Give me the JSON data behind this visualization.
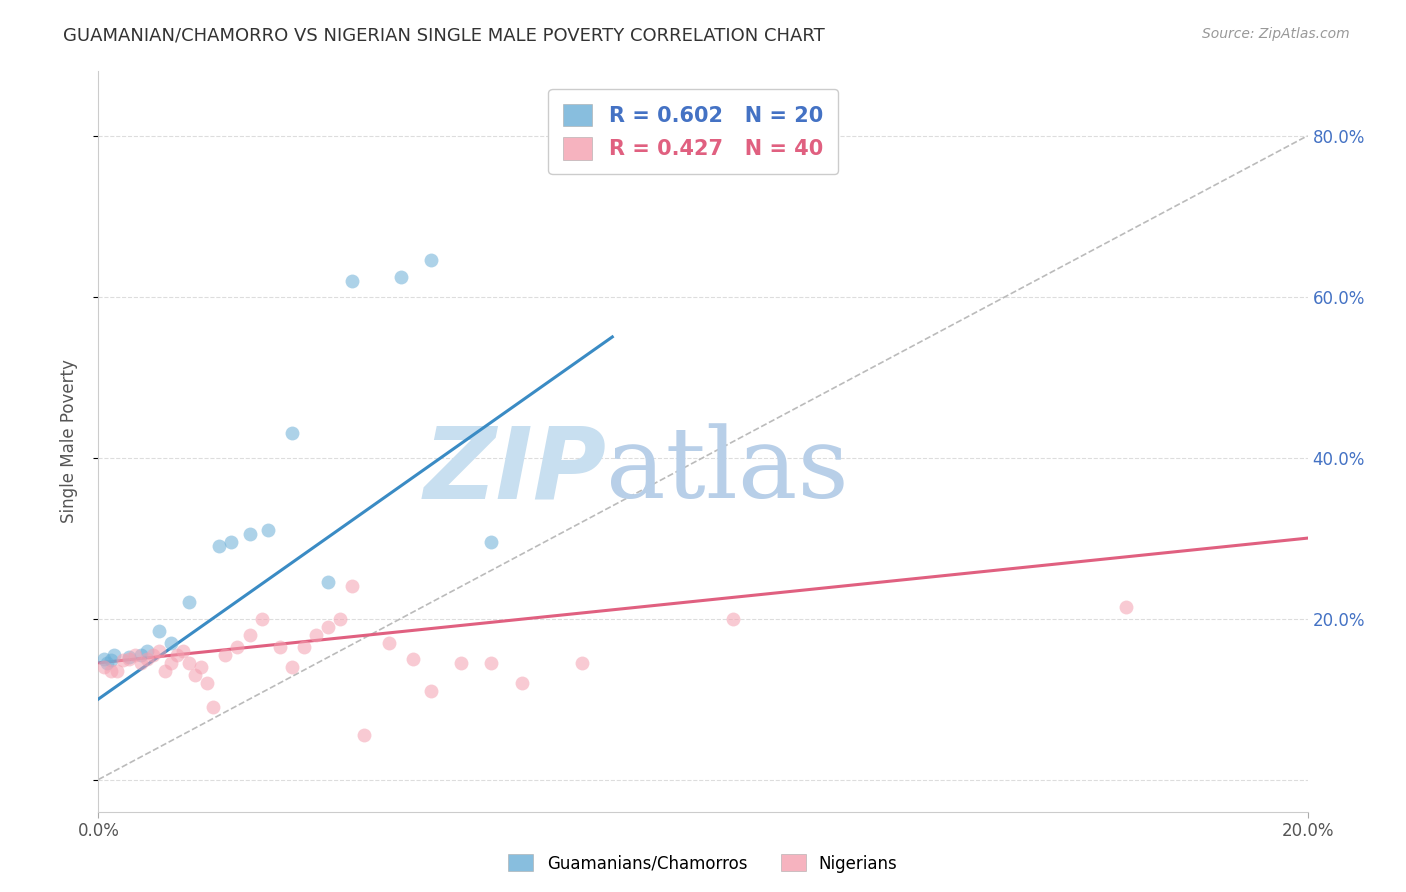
{
  "title": "GUAMANIAN/CHAMORRO VS NIGERIAN SINGLE MALE POVERTY CORRELATION CHART",
  "source": "Source: ZipAtlas.com",
  "ylabel": "Single Male Poverty",
  "y_ticks": [
    0.0,
    20.0,
    40.0,
    60.0,
    80.0
  ],
  "y_tick_labels": [
    "",
    "20.0%",
    "40.0%",
    "60.0%",
    "80.0%"
  ],
  "xlim": [
    0.0,
    20.0
  ],
  "ylim": [
    -4.0,
    88.0
  ],
  "guamanian_R": "0.602",
  "guamanian_N": "20",
  "nigerian_R": "0.427",
  "nigerian_N": "40",
  "guamanian_color": "#6baed6",
  "nigerian_color": "#f4a0b0",
  "guamanian_scatter": [
    [
      0.1,
      15.0
    ],
    [
      0.15,
      14.5
    ],
    [
      0.2,
      14.8
    ],
    [
      0.25,
      15.5
    ],
    [
      0.5,
      15.2
    ],
    [
      0.7,
      15.5
    ],
    [
      0.8,
      16.0
    ],
    [
      1.0,
      18.5
    ],
    [
      1.2,
      17.0
    ],
    [
      1.5,
      22.0
    ],
    [
      2.0,
      29.0
    ],
    [
      2.2,
      29.5
    ],
    [
      2.5,
      30.5
    ],
    [
      2.8,
      31.0
    ],
    [
      3.2,
      43.0
    ],
    [
      3.8,
      24.5
    ],
    [
      4.2,
      62.0
    ],
    [
      5.0,
      62.5
    ],
    [
      5.5,
      64.5
    ],
    [
      6.5,
      29.5
    ]
  ],
  "nigerian_scatter": [
    [
      0.1,
      14.0
    ],
    [
      0.2,
      13.5
    ],
    [
      0.3,
      13.5
    ],
    [
      0.4,
      14.8
    ],
    [
      0.5,
      15.0
    ],
    [
      0.6,
      15.5
    ],
    [
      0.7,
      14.5
    ],
    [
      0.8,
      15.0
    ],
    [
      0.9,
      15.5
    ],
    [
      1.0,
      16.0
    ],
    [
      1.1,
      13.5
    ],
    [
      1.2,
      14.5
    ],
    [
      1.3,
      15.5
    ],
    [
      1.4,
      16.0
    ],
    [
      1.5,
      14.5
    ],
    [
      1.6,
      13.0
    ],
    [
      1.7,
      14.0
    ],
    [
      1.8,
      12.0
    ],
    [
      1.9,
      9.0
    ],
    [
      2.1,
      15.5
    ],
    [
      2.3,
      16.5
    ],
    [
      2.5,
      18.0
    ],
    [
      2.7,
      20.0
    ],
    [
      3.0,
      16.5
    ],
    [
      3.2,
      14.0
    ],
    [
      3.4,
      16.5
    ],
    [
      3.6,
      18.0
    ],
    [
      3.8,
      19.0
    ],
    [
      4.0,
      20.0
    ],
    [
      4.2,
      24.0
    ],
    [
      4.4,
      5.5
    ],
    [
      4.8,
      17.0
    ],
    [
      5.2,
      15.0
    ],
    [
      5.5,
      11.0
    ],
    [
      6.0,
      14.5
    ],
    [
      6.5,
      14.5
    ],
    [
      7.0,
      12.0
    ],
    [
      8.0,
      14.5
    ],
    [
      10.5,
      20.0
    ],
    [
      17.0,
      21.5
    ]
  ],
  "guamanian_line_x": [
    0.0,
    8.5
  ],
  "guamanian_line_y": [
    10.0,
    55.0
  ],
  "nigerian_line_x": [
    0.0,
    20.0
  ],
  "nigerian_line_y": [
    14.5,
    30.0
  ],
  "diagonal_line_x": [
    0.0,
    20.0
  ],
  "diagonal_line_y": [
    0.0,
    80.0
  ],
  "background_color": "#ffffff",
  "grid_color": "#dddddd",
  "watermark_zip_color": "#c8dff0",
  "watermark_atlas_color": "#b8cfe8",
  "scatter_size": 100,
  "scatter_alpha": 0.55
}
